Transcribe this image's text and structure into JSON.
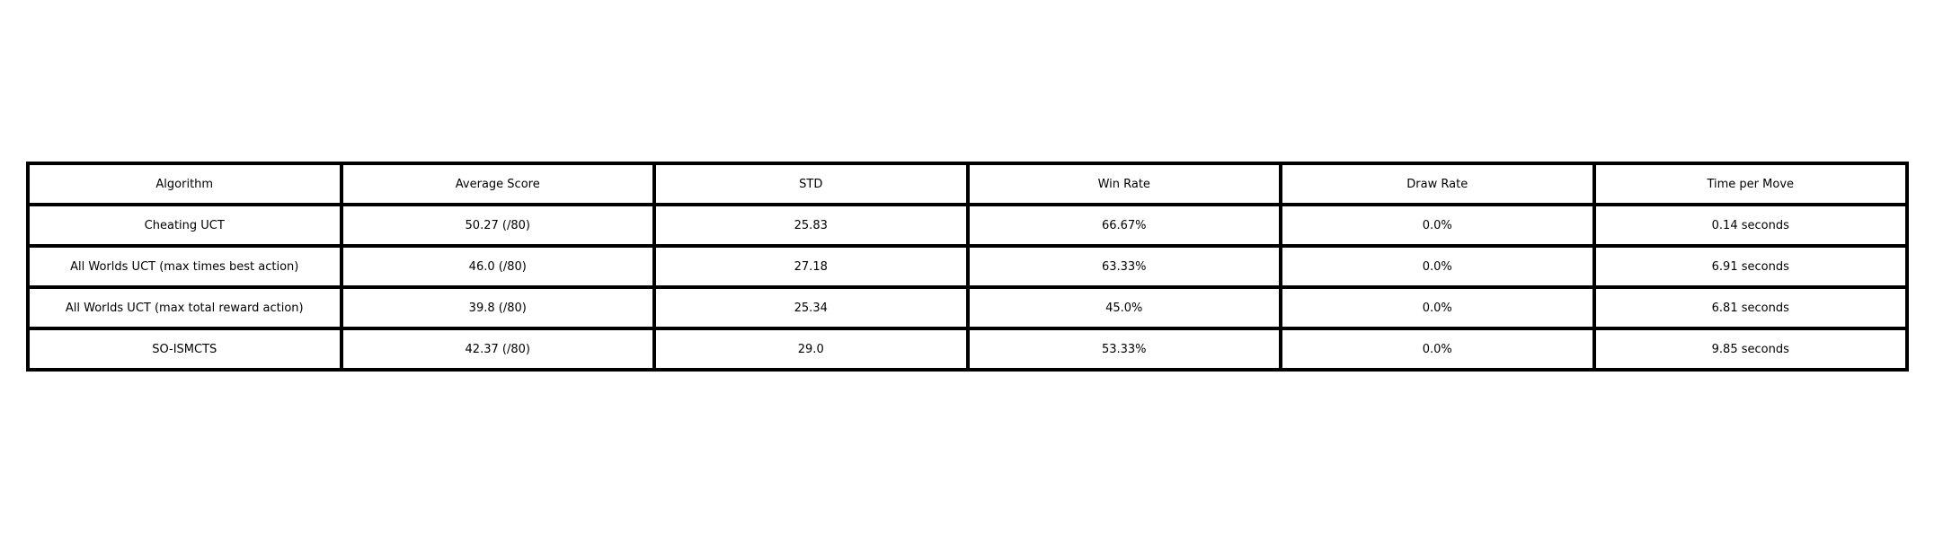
{
  "chart_data": {
    "type": "table",
    "columns": [
      "Algorithm",
      "Average Score",
      "STD",
      "Win Rate",
      "Draw Rate",
      "Time per Move"
    ],
    "rows": [
      [
        "Cheating UCT",
        "50.27 (/80)",
        "25.83",
        "66.67%",
        "0.0%",
        "0.14 seconds"
      ],
      [
        "All Worlds UCT (max times best action)",
        "46.0 (/80)",
        "27.18",
        "63.33%",
        "0.0%",
        "6.91 seconds"
      ],
      [
        "All Worlds UCT (max total reward action)",
        "39.8 (/80)",
        "25.34",
        "45.0%",
        "0.0%",
        "6.81 seconds"
      ],
      [
        "SO-ISMCTS",
        "42.37 (/80)",
        "29.0",
        "53.33%",
        "0.0%",
        "9.85 seconds"
      ]
    ],
    "border_color": "#000000",
    "text_color": "#000000",
    "background": "#ffffff"
  }
}
